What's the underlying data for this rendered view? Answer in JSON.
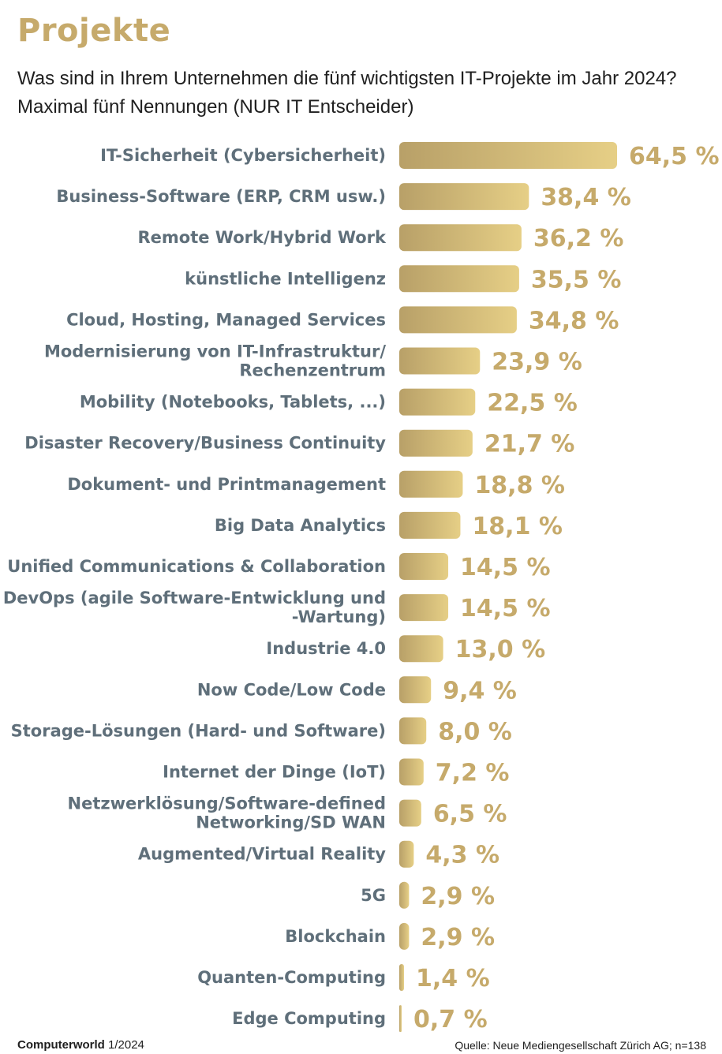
{
  "header": {
    "title": "Projekte",
    "subtitle": "Was sind in Ihrem Unternehmen die fünf wichtigsten IT-Projekte im Jahr 2024? Maximal fünf Nennungen (NUR IT Entscheider)"
  },
  "footer": {
    "publication": "Computerworld",
    "issue": "1/2024",
    "source": "Quelle: Neue Mediengesellschaft Zürich AG; n=138"
  },
  "colors": {
    "bar_start": "#b8a068",
    "bar_end": "#e6cf86",
    "value_text": "#c6aa6b",
    "label_text": "#5f6f7a"
  },
  "chart_data": {
    "type": "bar",
    "orientation": "horizontal",
    "title": "Projekte",
    "xlabel": "",
    "ylabel": "",
    "xlim": [
      0,
      64.5
    ],
    "grid": false,
    "categories": [
      [
        "IT-Sicherheit (Cybersicherheit)"
      ],
      [
        "Business-Software (ERP, CRM usw.)"
      ],
      [
        "Remote Work/Hybrid Work"
      ],
      [
        "künstliche Intelligenz"
      ],
      [
        "Cloud, Hosting, Managed Services"
      ],
      [
        "Modernisierung von IT-Infrastruktur/",
        "Rechenzentrum"
      ],
      [
        "Mobility (Notebooks, Tablets, ...)"
      ],
      [
        "Disaster Recovery/Business Continuity"
      ],
      [
        "Dokument- und Printmanagement"
      ],
      [
        "Big Data Analytics"
      ],
      [
        "Unified Communications & Collaboration"
      ],
      [
        "DevOps (agile Software-Entwicklung und",
        "-Wartung)"
      ],
      [
        "Industrie 4.0"
      ],
      [
        "Now Code/Low Code"
      ],
      [
        "Storage-Lösungen (Hard- und Software)"
      ],
      [
        "Internet der Dinge (IoT)"
      ],
      [
        "Netzwerklösung/Software-defined",
        "Networking/SD WAN"
      ],
      [
        "Augmented/Virtual Reality"
      ],
      [
        "5G"
      ],
      [
        "Blockchain"
      ],
      [
        "Quanten-Computing"
      ],
      [
        "Edge Computing"
      ]
    ],
    "values": [
      64.5,
      38.4,
      36.2,
      35.5,
      34.8,
      23.9,
      22.5,
      21.7,
      18.8,
      18.1,
      14.5,
      14.5,
      13.0,
      9.4,
      8.0,
      7.2,
      6.5,
      4.3,
      2.9,
      2.9,
      1.4,
      0.7
    ],
    "value_labels": [
      "64,5 %",
      "38,4 %",
      "36,2 %",
      "35,5 %",
      "34,8 %",
      "23,9 %",
      "22,5 %",
      "21,7 %",
      "18,8 %",
      "18,1 %",
      "14,5 %",
      "14,5 %",
      "13,0 %",
      "9,4 %",
      "8,0 %",
      "7,2 %",
      "6,5 %",
      "4,3 %",
      "2,9 %",
      "2,9 %",
      "1,4 %",
      "0,7 %"
    ]
  }
}
